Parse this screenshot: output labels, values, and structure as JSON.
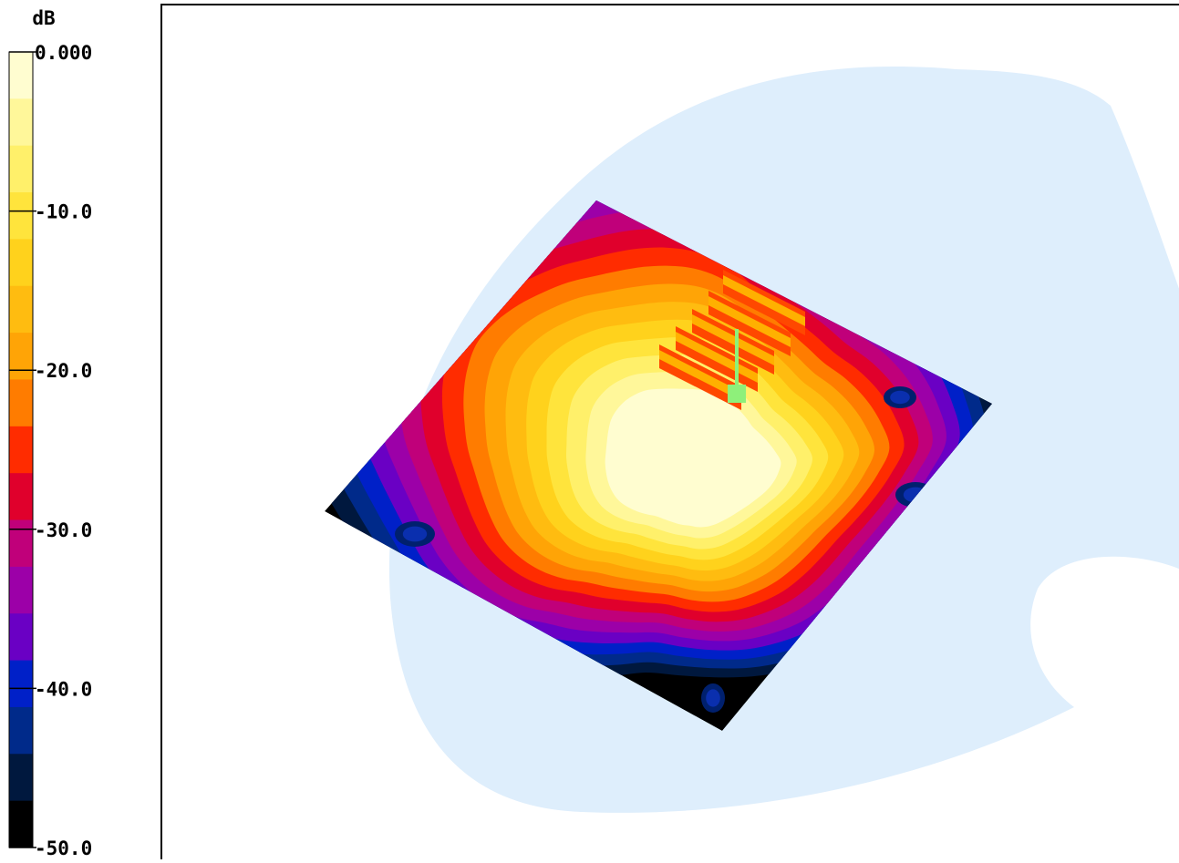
{
  "chart_data": {
    "type": "heatmap",
    "title": "",
    "colorbar": {
      "unit_label": "dB",
      "min": -50.0,
      "max": 0.0,
      "step": 2.5,
      "tick_labels": [
        "0.000",
        "-10.0",
        "-20.0",
        "-30.0",
        "-40.0",
        "-50.0"
      ],
      "tick_values": [
        0,
        -10,
        -20,
        -30,
        -40,
        -50
      ],
      "colors": [
        "#fffdd0",
        "#fff79a",
        "#fff06a",
        "#ffe43c",
        "#ffd21c",
        "#ffbc10",
        "#ffa406",
        "#ff7c00",
        "#ff2c00",
        "#e0002c",
        "#c0007a",
        "#9c00a8",
        "#6a00c4",
        "#0020c8",
        "#002a8a",
        "#00183e",
        "#000000"
      ]
    },
    "map": {
      "background_color": "#deeefc",
      "peak_db": 0.0,
      "floor_db": -50.0
    }
  }
}
